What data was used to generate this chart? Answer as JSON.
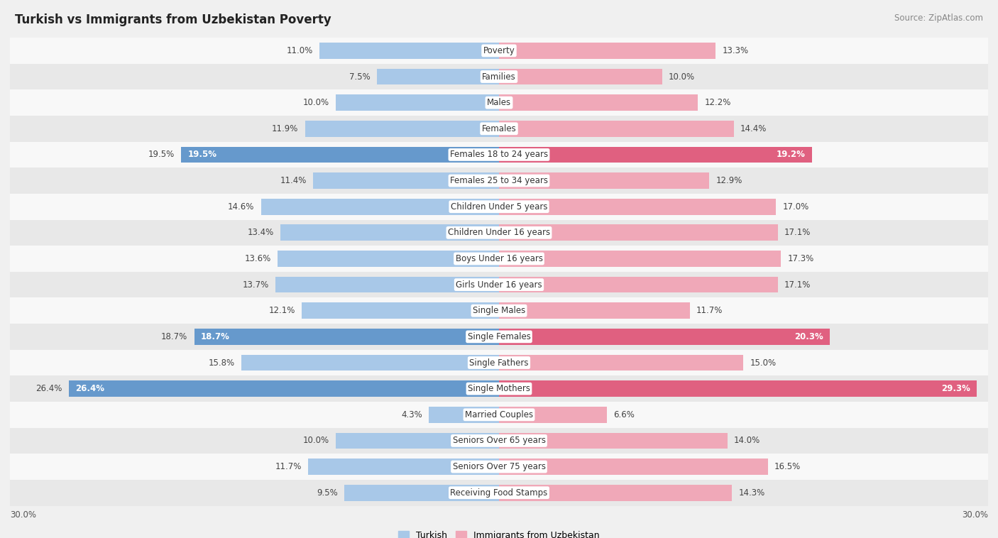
{
  "title": "Turkish vs Immigrants from Uzbekistan Poverty",
  "source": "Source: ZipAtlas.com",
  "categories": [
    "Poverty",
    "Families",
    "Males",
    "Females",
    "Females 18 to 24 years",
    "Females 25 to 34 years",
    "Children Under 5 years",
    "Children Under 16 years",
    "Boys Under 16 years",
    "Girls Under 16 years",
    "Single Males",
    "Single Females",
    "Single Fathers",
    "Single Mothers",
    "Married Couples",
    "Seniors Over 65 years",
    "Seniors Over 75 years",
    "Receiving Food Stamps"
  ],
  "turkish": [
    11.0,
    7.5,
    10.0,
    11.9,
    19.5,
    11.4,
    14.6,
    13.4,
    13.6,
    13.7,
    12.1,
    18.7,
    15.8,
    26.4,
    4.3,
    10.0,
    11.7,
    9.5
  ],
  "uzbekistan": [
    13.3,
    10.0,
    12.2,
    14.4,
    19.2,
    12.9,
    17.0,
    17.1,
    17.3,
    17.1,
    11.7,
    20.3,
    15.0,
    29.3,
    6.6,
    14.0,
    16.5,
    14.3
  ],
  "highlighted_turkish": [
    4,
    11,
    13
  ],
  "highlighted_uzbekistan": [
    4,
    11,
    13
  ],
  "max_val": 30.0,
  "blue_light": "#a8c8e8",
  "blue_dark": "#6699cc",
  "pink_light": "#f0a8b8",
  "pink_dark": "#e06080",
  "bg_color": "#f0f0f0",
  "row_bg_even": "#f8f8f8",
  "row_bg_odd": "#e8e8e8",
  "label_fontsize": 8.5,
  "title_fontsize": 12,
  "source_fontsize": 8.5,
  "value_fontsize": 8.5
}
